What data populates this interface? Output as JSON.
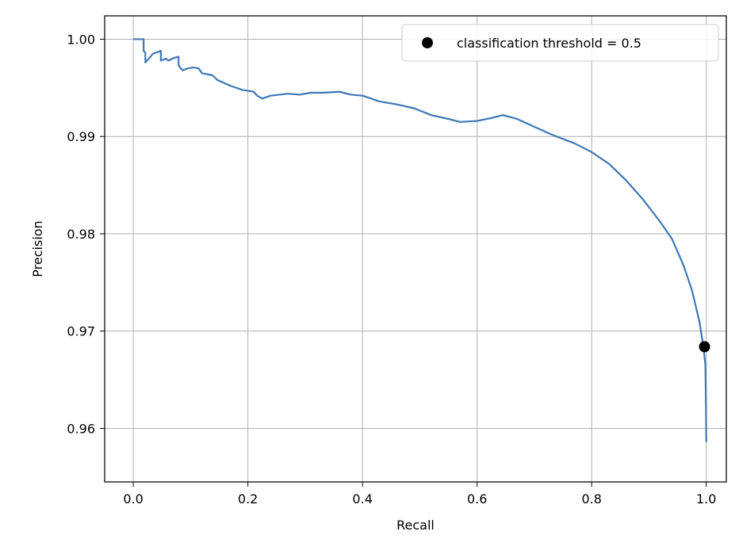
{
  "chart_data": {
    "type": "line",
    "xlabel": "Recall",
    "ylabel": "Precision",
    "xlim": [
      -0.05,
      1.035
    ],
    "ylim": [
      0.9545,
      1.0024
    ],
    "xticks": [
      0.0,
      0.2,
      0.4,
      0.6,
      0.8,
      1.0
    ],
    "xtick_labels": [
      "0.0",
      "0.2",
      "0.4",
      "0.6",
      "0.8",
      "1.0"
    ],
    "yticks": [
      0.96,
      0.97,
      0.98,
      0.99,
      1.0
    ],
    "ytick_labels": [
      "0.96",
      "0.97",
      "0.98",
      "0.99",
      "1.00"
    ],
    "grid": true,
    "legend_position": "top-right",
    "line_color": "#3d78b5",
    "marker_color": "#000000",
    "series": [
      {
        "values": [
          [
            0.0,
            1.0
          ],
          [
            0.018,
            1.0
          ],
          [
            0.018,
            0.9988
          ],
          [
            0.021,
            0.9986
          ],
          [
            0.021,
            0.9976
          ],
          [
            0.03,
            0.9982
          ],
          [
            0.034,
            0.9985
          ],
          [
            0.048,
            0.9988
          ],
          [
            0.048,
            0.9978
          ],
          [
            0.057,
            0.998
          ],
          [
            0.061,
            0.9978
          ],
          [
            0.072,
            0.9981
          ],
          [
            0.079,
            0.9982
          ],
          [
            0.079,
            0.9973
          ],
          [
            0.086,
            0.9968
          ],
          [
            0.095,
            0.997
          ],
          [
            0.105,
            0.9971
          ],
          [
            0.114,
            0.997
          ],
          [
            0.12,
            0.9965
          ],
          [
            0.138,
            0.9963
          ],
          [
            0.147,
            0.9958
          ],
          [
            0.17,
            0.9952
          ],
          [
            0.19,
            0.9948
          ],
          [
            0.21,
            0.9946
          ],
          [
            0.216,
            0.9942
          ],
          [
            0.225,
            0.9939
          ],
          [
            0.24,
            0.9942
          ],
          [
            0.27,
            0.9944
          ],
          [
            0.29,
            0.9943
          ],
          [
            0.31,
            0.9945
          ],
          [
            0.33,
            0.9945
          ],
          [
            0.36,
            0.9946
          ],
          [
            0.38,
            0.9943
          ],
          [
            0.4,
            0.9942
          ],
          [
            0.43,
            0.9936
          ],
          [
            0.46,
            0.9933
          ],
          [
            0.49,
            0.9929
          ],
          [
            0.52,
            0.9922
          ],
          [
            0.55,
            0.9918
          ],
          [
            0.57,
            0.9915
          ],
          [
            0.6,
            0.9916
          ],
          [
            0.625,
            0.9919
          ],
          [
            0.645,
            0.9922
          ],
          [
            0.67,
            0.9918
          ],
          [
            0.7,
            0.991
          ],
          [
            0.73,
            0.9902
          ],
          [
            0.77,
            0.9893
          ],
          [
            0.8,
            0.9884
          ],
          [
            0.83,
            0.9872
          ],
          [
            0.86,
            0.9855
          ],
          [
            0.89,
            0.9835
          ],
          [
            0.92,
            0.9812
          ],
          [
            0.94,
            0.9795
          ],
          [
            0.96,
            0.9768
          ],
          [
            0.975,
            0.9742
          ],
          [
            0.988,
            0.971
          ],
          [
            0.995,
            0.9684
          ],
          [
            0.9985,
            0.9665
          ],
          [
            0.9995,
            0.9622
          ],
          [
            1.0,
            0.9586
          ]
        ]
      }
    ],
    "markers": [
      {
        "label": "classification threshold = 0.5",
        "x": 0.997,
        "y": 0.9684
      }
    ]
  }
}
